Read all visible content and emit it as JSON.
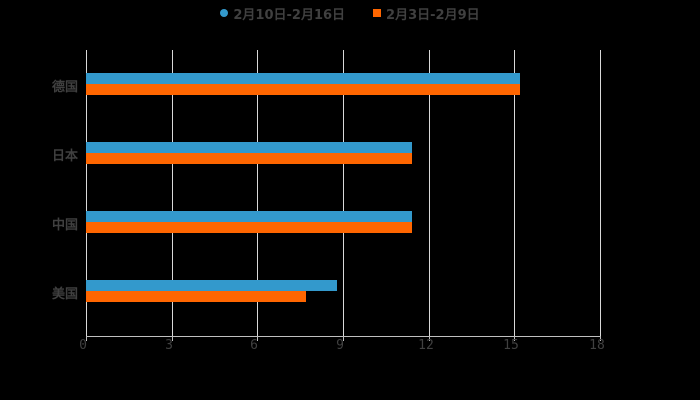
{
  "chart_data": {
    "type": "bar",
    "orientation": "horizontal",
    "categories": [
      "德国",
      "日本",
      "中国",
      "美国"
    ],
    "series": [
      {
        "name": "2月10日-2月16日",
        "color": "#3399cc",
        "values": [
          15.2,
          11.4,
          11.4,
          8.8
        ]
      },
      {
        "name": "2月3日-2月9日",
        "color": "#ff6600",
        "values": [
          15.2,
          11.4,
          11.4,
          7.7
        ]
      }
    ],
    "title": "",
    "xlabel": "",
    "ylabel": "",
    "xlim": [
      0,
      18
    ],
    "xticks": [
      "0",
      "3",
      "6",
      "9",
      "12",
      "15",
      "18"
    ],
    "grid": true,
    "legend_position": "top"
  }
}
